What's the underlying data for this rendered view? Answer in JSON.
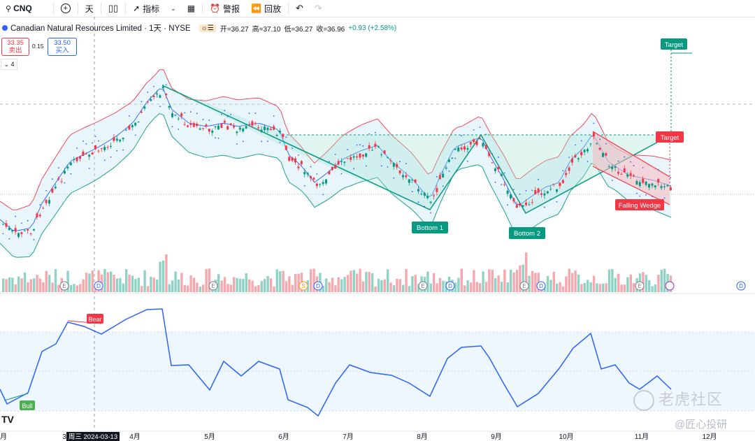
{
  "toolbar": {
    "symbol": "CNQ",
    "interval": "天",
    "indicators": "指标",
    "alert": "警报",
    "replay": "回放"
  },
  "legend": {
    "title": "Canadian Natural Resources Limited · 1天 · NYSE",
    "open": "开=36.27",
    "high": "高=37.10",
    "low": "低=36.27",
    "close": "收=36.96",
    "change": "+0.93 (+2.58%)"
  },
  "trade": {
    "sell_price": "33.35",
    "sell_label": "卖出",
    "spread": "0.15",
    "buy_price": "33.50",
    "buy_label": "买入",
    "collapse_count": "4"
  },
  "annotations": {
    "target_top": "Target",
    "target_right": "Target",
    "bottom1": "Bottom 1",
    "bottom2": "Bottom 2",
    "wedge": "Falling Wedge",
    "bear": "Bear",
    "bull": "Bull"
  },
  "event_markers": [
    "E",
    "D",
    "E",
    "S",
    "D",
    "E",
    "D",
    "E",
    "D",
    "E",
    "D"
  ],
  "xaxis": {
    "labels": [
      "3",
      "4月",
      "5月",
      "6月",
      "7月",
      "8月",
      "9月",
      "10月",
      "11月",
      "12月"
    ],
    "crosshair": "周三 2024-03-13",
    "first": "月"
  },
  "watermark": {
    "main": "老虎社区",
    "sub": "@匠心投研"
  },
  "colors": {
    "up": "#089981",
    "down": "#f23645",
    "band": "#2196f3",
    "rsi": "#2962ff"
  }
}
